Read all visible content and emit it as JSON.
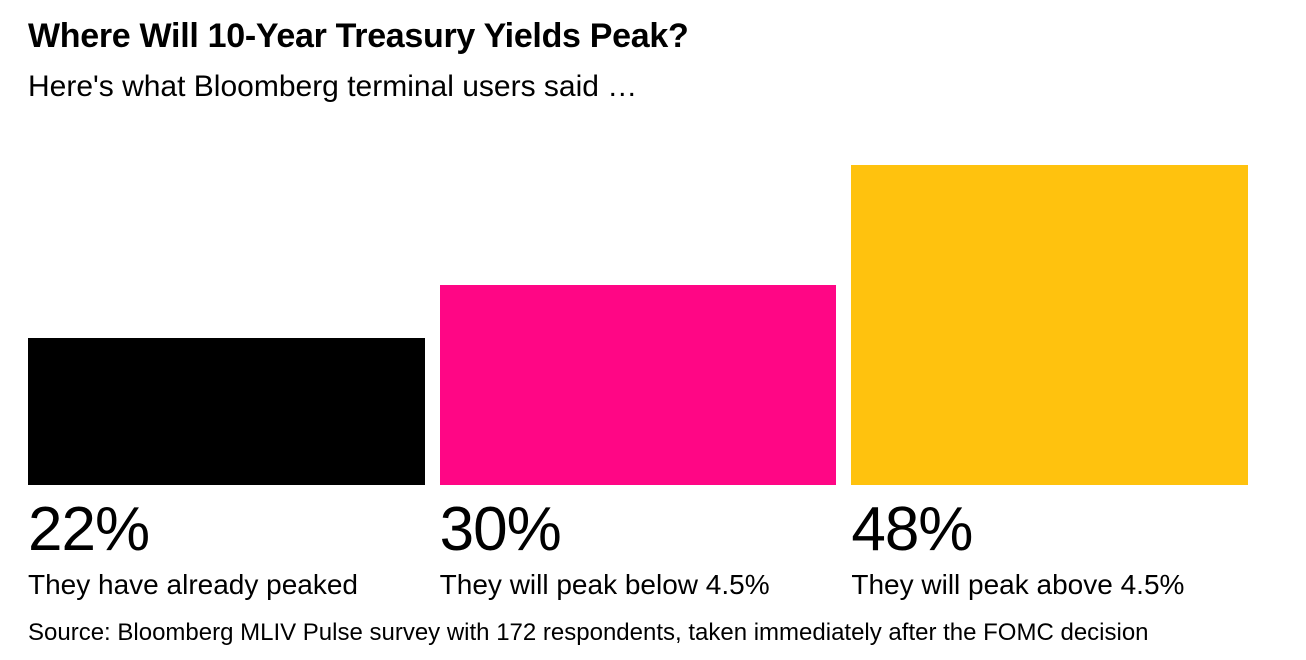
{
  "header": {
    "title": "Where Will 10-Year Treasury Yields Peak?",
    "subtitle": "Here's what Bloomberg terminal users said …"
  },
  "chart_data": {
    "type": "bar",
    "title": "Where Will 10-Year Treasury Yields Peak?",
    "subtitle": "Here's what Bloomberg terminal users said …",
    "categories": [
      "They have already peaked",
      "They will peak below 4.5%",
      "They will peak above 4.5%"
    ],
    "values": [
      22,
      30,
      48
    ],
    "value_labels": [
      "22%",
      "30%",
      "48%"
    ],
    "colors": [
      "#000000",
      "#FF0685",
      "#FFC20E"
    ],
    "unit": "%",
    "ylim": [
      0,
      48
    ],
    "grid": false,
    "legend": false,
    "orientation": "vertical",
    "value_label_position": "below-bar"
  },
  "footer": {
    "source": "Source: Bloomberg MLIV Pulse survey with 172 respondents, taken immediately after the FOMC decision"
  }
}
